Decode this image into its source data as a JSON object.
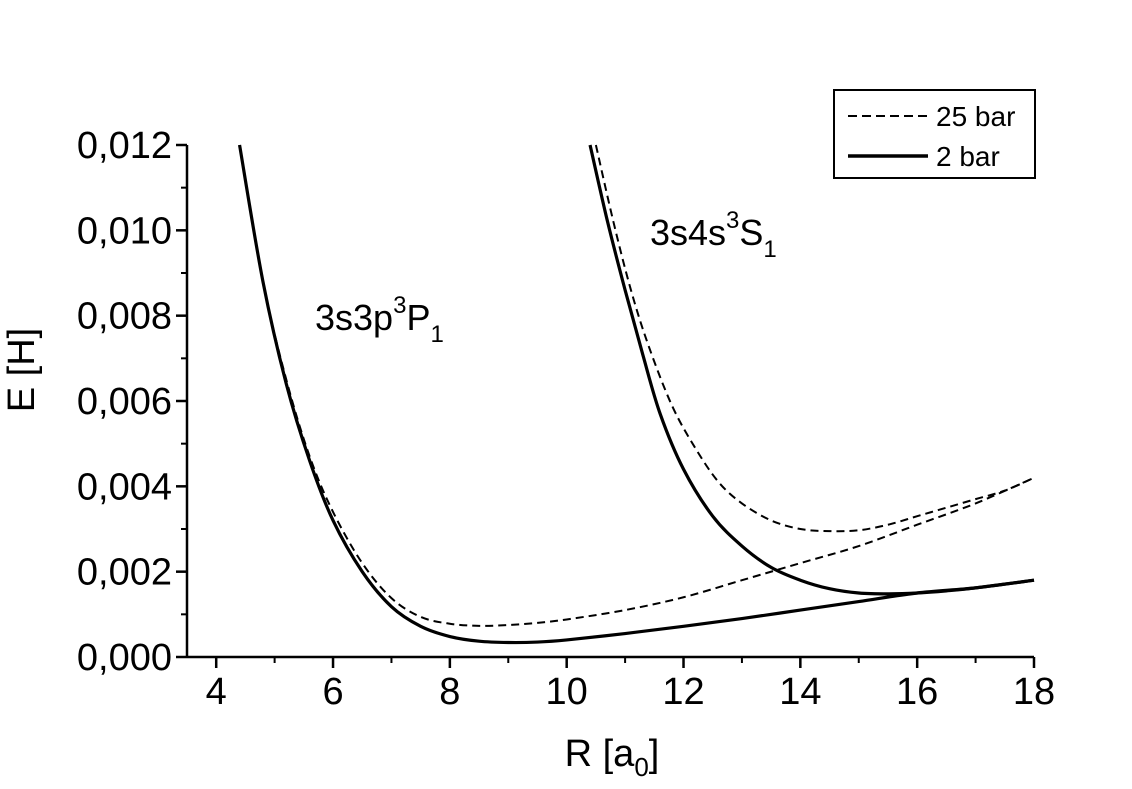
{
  "chart_data": {
    "type": "line",
    "xlabel": {
      "main": "R [a",
      "sub": "0",
      "tail": "]"
    },
    "ylabel": "E [H]",
    "xlim": [
      3.5,
      18
    ],
    "ylim": [
      0,
      0.012
    ],
    "x_ticks": [
      4,
      6,
      8,
      10,
      12,
      14,
      16,
      18
    ],
    "x_tick_labels": [
      "4",
      "6",
      "8",
      "10",
      "12",
      "14",
      "16",
      "18"
    ],
    "y_ticks": [
      0,
      0.002,
      0.004,
      0.006,
      0.008,
      0.01,
      0.012
    ],
    "y_tick_labels": [
      "0,000",
      "0,002",
      "0,004",
      "0,006",
      "0,008",
      "0,010",
      "0,012"
    ],
    "grid": false,
    "legend": {
      "placement": "top-right",
      "entries": [
        {
          "label": "25 bar",
          "style": "dashed"
        },
        {
          "label": "2 bar",
          "style": "solid"
        }
      ]
    },
    "annotations": [
      {
        "id": "p1",
        "base": "3s3p",
        "sup": "3",
        "mid": "P",
        "sub": "1"
      },
      {
        "id": "s1",
        "base": "3s4s",
        "sup": "3",
        "mid": "S",
        "sub": "1"
      }
    ],
    "series": [
      {
        "legend": "2 bar",
        "state": "3s3p 3P1",
        "style": "solid",
        "x": [
          4.4,
          4.8,
          5.2,
          5.6,
          6.0,
          6.5,
          7.0,
          7.5,
          8.0,
          8.5,
          9.0,
          9.5,
          10.0,
          11.0,
          12.0,
          13.0,
          14.0,
          15.0,
          16.0,
          17.0,
          18.0
        ],
        "y": [
          0.012,
          0.0088,
          0.0064,
          0.0046,
          0.0032,
          0.002,
          0.00118,
          0.00072,
          0.00048,
          0.00037,
          0.00034,
          0.00035,
          0.0004,
          0.00055,
          0.00072,
          0.0009,
          0.0011,
          0.0013,
          0.0015,
          0.00162,
          0.0018
        ]
      },
      {
        "legend": "25 bar",
        "state": "3s3p 3P1",
        "style": "dashed",
        "x": [
          4.4,
          4.8,
          5.2,
          5.6,
          6.0,
          6.5,
          7.0,
          7.5,
          8.0,
          8.5,
          9.0,
          9.5,
          10.0,
          11.0,
          12.0,
          13.0,
          14.0,
          15.0,
          16.0,
          17.0,
          18.0
        ],
        "y": [
          0.012,
          0.0088,
          0.0065,
          0.0047,
          0.0034,
          0.0022,
          0.00138,
          0.00094,
          0.00078,
          0.00073,
          0.00075,
          0.0008,
          0.00088,
          0.0011,
          0.0014,
          0.0018,
          0.0022,
          0.0026,
          0.0031,
          0.0036,
          0.0042
        ]
      },
      {
        "legend": "2 bar",
        "state": "3s4s 3S1",
        "style": "solid",
        "x": [
          10.4,
          10.7,
          11.0,
          11.3,
          11.6,
          12.0,
          12.5,
          13.0,
          13.5,
          14.0,
          14.5,
          15.0,
          15.5,
          16.0,
          16.5,
          17.0,
          18.0
        ],
        "y": [
          0.012,
          0.0102,
          0.0086,
          0.0071,
          0.0057,
          0.0044,
          0.0033,
          0.0026,
          0.0021,
          0.0018,
          0.0016,
          0.0015,
          0.00148,
          0.0015,
          0.00155,
          0.00162,
          0.0018
        ]
      },
      {
        "legend": "25 bar",
        "state": "3s4s 3S1",
        "style": "dashed",
        "x": [
          10.5,
          10.8,
          11.1,
          11.4,
          11.8,
          12.2,
          12.6,
          13.0,
          13.5,
          14.0,
          14.5,
          15.0,
          15.5,
          16.0,
          16.5,
          17.0,
          17.5,
          18.0
        ],
        "y": [
          0.012,
          0.0102,
          0.0086,
          0.0073,
          0.0059,
          0.0049,
          0.0041,
          0.0036,
          0.0032,
          0.003,
          0.00295,
          0.00297,
          0.0031,
          0.0033,
          0.0035,
          0.0037,
          0.0039,
          0.0042
        ]
      }
    ]
  }
}
